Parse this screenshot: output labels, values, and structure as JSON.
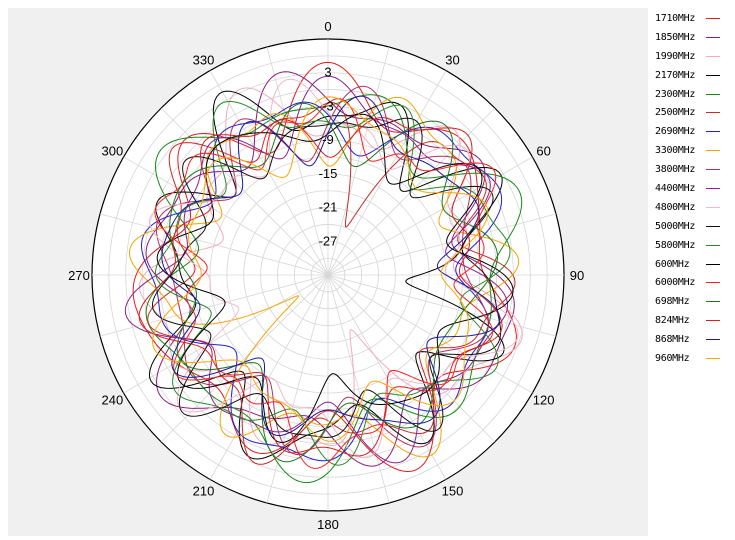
{
  "chart_data": {
    "type": "polar-line",
    "title": "",
    "radial_axis": {
      "range": [
        -33,
        9
      ],
      "ticks": [
        3,
        -3,
        -9,
        -15,
        -21,
        -27
      ]
    },
    "angular_axis": {
      "direction": "clockwise",
      "zero_at": "top",
      "ticks": [
        0,
        30,
        60,
        90,
        120,
        150,
        180,
        210,
        240,
        270,
        300,
        330
      ]
    },
    "grid": true,
    "legend_position": "right",
    "series": [
      {
        "name": "1710MHz",
        "color": "#e21b1b",
        "base": -2.0,
        "amp": 4,
        "k1": 7,
        "k2": 9,
        "seed": 1,
        "notch_angle": null,
        "notch_depth": 0
      },
      {
        "name": "1850MHz",
        "color": "#8a1c7c",
        "base": -3.0,
        "amp": 4,
        "k1": 6,
        "k2": 10,
        "seed": 2,
        "notch_angle": null,
        "notch_depth": 0
      },
      {
        "name": "1990MHz",
        "color": "#f2a9c4",
        "base": -5.0,
        "amp": 5,
        "k1": 5,
        "k2": 11,
        "seed": 3,
        "notch_angle": 160,
        "notch_depth": 10
      },
      {
        "name": "2170MHz",
        "color": "#000000",
        "base": -4.0,
        "amp": 5,
        "k1": 8,
        "k2": 12,
        "seed": 4,
        "notch_angle": 95,
        "notch_depth": 16
      },
      {
        "name": "2300MHz",
        "color": "#138b13",
        "base": -2.5,
        "amp": 4,
        "k1": 6,
        "k2": 9,
        "seed": 5,
        "notch_angle": null,
        "notch_depth": 0
      },
      {
        "name": "2500MHz",
        "color": "#cc2a2a",
        "base": -4.5,
        "amp": 4,
        "k1": 7,
        "k2": 13,
        "seed": 6,
        "notch_angle": 20,
        "notch_depth": 12
      },
      {
        "name": "2690MHz",
        "color": "#2020d8",
        "base": -4.0,
        "amp": 4,
        "k1": 5,
        "k2": 10,
        "seed": 7,
        "notch_angle": null,
        "notch_depth": 0
      },
      {
        "name": "3300MHz",
        "color": "#f5a300",
        "base": -5.0,
        "amp": 5,
        "k1": 6,
        "k2": 11,
        "seed": 8,
        "notch_angle": 235,
        "notch_depth": 14
      },
      {
        "name": "3800MHz",
        "color": "#b03060",
        "base": -5.5,
        "amp": 4,
        "k1": 8,
        "k2": 10,
        "seed": 9,
        "notch_angle": null,
        "notch_depth": 0
      },
      {
        "name": "4400MHz",
        "color": "#8b2090",
        "base": -4.0,
        "amp": 4,
        "k1": 7,
        "k2": 11,
        "seed": 10,
        "notch_angle": null,
        "notch_depth": 0
      },
      {
        "name": "4800MHz",
        "color": "#f0b8c8",
        "base": -6.0,
        "amp": 5,
        "k1": 6,
        "k2": 12,
        "seed": 11,
        "notch_angle": 250,
        "notch_depth": 10
      },
      {
        "name": "5000MHz",
        "color": "#111111",
        "base": -5.0,
        "amp": 4,
        "k1": 9,
        "k2": 13,
        "seed": 12,
        "notch_angle": 340,
        "notch_depth": 9
      },
      {
        "name": "5800MHz",
        "color": "#2a8a2a",
        "base": -4.5,
        "amp": 4,
        "k1": 7,
        "k2": 12,
        "seed": 13,
        "notch_angle": null,
        "notch_depth": 0
      },
      {
        "name": "600MHz",
        "color": "#000000",
        "base": -6.5,
        "amp": 4,
        "k1": 8,
        "k2": 10,
        "seed": 14,
        "notch_angle": 180,
        "notch_depth": 8
      },
      {
        "name": "6000MHz",
        "color": "#ff2020",
        "base": -5.5,
        "amp": 4,
        "k1": 6,
        "k2": 14,
        "seed": 15,
        "notch_angle": null,
        "notch_depth": 0
      },
      {
        "name": "698MHz",
        "color": "#1b7a1b",
        "base": -6.0,
        "amp": 4,
        "k1": 7,
        "k2": 9,
        "seed": 16,
        "notch_angle": null,
        "notch_depth": 0
      },
      {
        "name": "824MHz",
        "color": "#d42020",
        "base": -5.0,
        "amp": 4,
        "k1": 5,
        "k2": 12,
        "seed": 17,
        "notch_angle": null,
        "notch_depth": 0
      },
      {
        "name": "868MHz",
        "color": "#1a1aa0",
        "base": -6.5,
        "amp": 4,
        "k1": 8,
        "k2": 11,
        "seed": 18,
        "notch_angle": null,
        "notch_depth": 0
      },
      {
        "name": "960MHz",
        "color": "#ffa500",
        "base": -7.0,
        "amp": 4,
        "k1": 6,
        "k2": 10,
        "seed": 19,
        "notch_angle": null,
        "notch_depth": 0
      }
    ]
  }
}
